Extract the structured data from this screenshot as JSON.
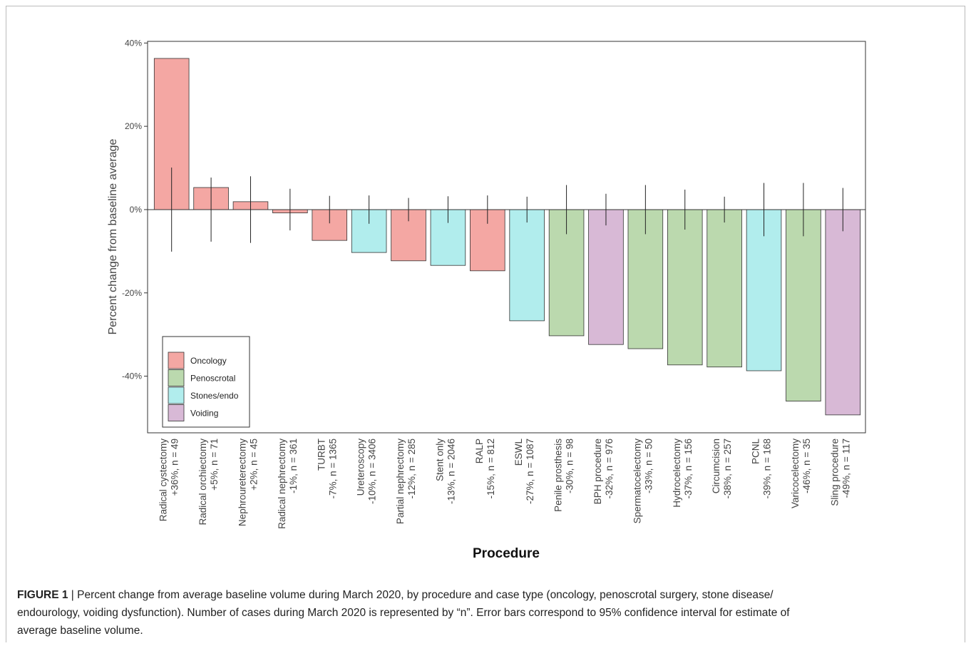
{
  "chart_data": {
    "type": "bar",
    "y_label": "Percent change from baseline average",
    "x_label": "Procedure",
    "categories": [
      [
        "Radical cystectomy",
        "+36%, n = 49"
      ],
      [
        "Radical orchiectomy",
        "+5%, n = 71"
      ],
      [
        "Nephroureterectomy",
        "+2%, n = 45"
      ],
      [
        "Radical nephrectomy",
        "-1%, n = 361"
      ],
      [
        "TURBT",
        "-7%, n = 1365"
      ],
      [
        "Ureteroscopy",
        "-10%, n = 3406"
      ],
      [
        "Partial nephrectomy",
        "-12%, n = 285"
      ],
      [
        "Stent only",
        "-13%, n = 2046"
      ],
      [
        "RALP",
        "-15%, n = 812"
      ],
      [
        "ESWL",
        "-27%, n = 1087"
      ],
      [
        "Penile prosthesis",
        "-30%, n = 98"
      ],
      [
        "BPH procedure",
        "-32%, n = 976"
      ],
      [
        "Spermatocelectomy",
        "-33%, n = 50"
      ],
      [
        "Hydrocelectomy",
        "-37%, n = 156"
      ],
      [
        "Circumcision",
        "-38%, n = 257"
      ],
      [
        "PCNL",
        "-39%, n = 168"
      ],
      [
        "Varicocelectomy",
        "-46%, n = 35"
      ],
      [
        "Sling procedure",
        "-49%, n = 117"
      ]
    ],
    "series": [
      {
        "name": "Oncology",
        "color": "#f4a7a3",
        "values": [
          36.3,
          5.3,
          1.9,
          -0.8,
          -7.4,
          null,
          -12.3,
          null,
          -14.7,
          null,
          null,
          null,
          null,
          null,
          null,
          null,
          null,
          null
        ]
      },
      {
        "name": "Penoscrotal",
        "color": "#bbd9ae",
        "values": [
          null,
          null,
          null,
          null,
          null,
          null,
          null,
          null,
          null,
          null,
          -30.3,
          null,
          -33.4,
          -37.3,
          -37.8,
          null,
          -46,
          null
        ]
      },
      {
        "name": "Stones/endo",
        "color": "#b1eded",
        "values": [
          null,
          null,
          null,
          null,
          null,
          -10.3,
          null,
          -13.4,
          null,
          -26.7,
          null,
          null,
          null,
          null,
          null,
          -38.7,
          null,
          null
        ]
      },
      {
        "name": "Voiding",
        "color": "#d8b9d6",
        "values": [
          null,
          null,
          null,
          null,
          null,
          null,
          null,
          null,
          null,
          null,
          null,
          -32.4,
          null,
          null,
          null,
          null,
          null,
          -49.3
        ]
      }
    ],
    "errors": [
      10.1,
      7.7,
      8,
      5,
      3.3,
      3.4,
      2.8,
      3.2,
      3.4,
      3.1,
      5.9,
      3.8,
      5.9,
      4.8,
      3.1,
      6.4,
      6.4,
      5.2
    ],
    "ylim": [
      -53.6,
      40.4
    ],
    "yticks": [
      {
        "value": -40,
        "label": "-40%"
      },
      {
        "value": -20,
        "label": "-20%"
      },
      {
        "value": 0,
        "label": "0%"
      },
      {
        "value": 20,
        "label": "20%"
      },
      {
        "value": 40,
        "label": "40%"
      }
    ],
    "legend_position": "lower left",
    "caption": {
      "label": "FIGURE 1",
      "lines": [
        " | Percent change from average baseline volume during March 2020, by procedure and case type (oncology, penoscrotal surgery, stone disease/",
        "endourology, voiding dysfunction). Number of cases during March 2020 is represented by “n”. Error bars correspond to 95% confidence interval for estimate of",
        "average baseline volume."
      ]
    }
  }
}
